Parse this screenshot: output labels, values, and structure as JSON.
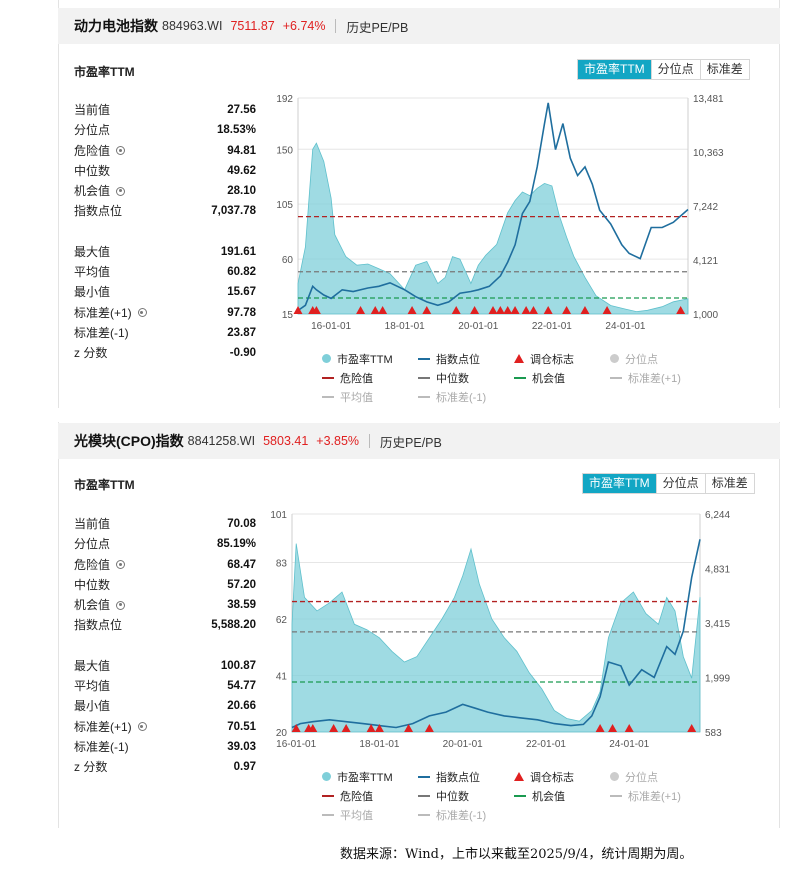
{
  "panels": [
    {
      "header": {
        "name": "动力电池指数",
        "code": "884963.WI",
        "price": "7511.87",
        "change": "+6.74%",
        "history": "历史PE/PB"
      },
      "subtitle": "市盈率TTM",
      "tabs": [
        "市盈率TTM",
        "分位点",
        "标准差"
      ],
      "stats_top": [
        {
          "label": "当前值",
          "value": "27.56",
          "gear": false
        },
        {
          "label": "分位点",
          "value": "18.53%",
          "gear": false
        },
        {
          "label": "危险值",
          "value": "94.81",
          "gear": true
        },
        {
          "label": "中位数",
          "value": "49.62",
          "gear": false
        },
        {
          "label": "机会值",
          "value": "28.10",
          "gear": true
        },
        {
          "label": "指数点位",
          "value": "7,037.78",
          "gear": false
        }
      ],
      "stats_bottom": [
        {
          "label": "最大值",
          "value": "191.61",
          "gear": false
        },
        {
          "label": "平均值",
          "value": "60.82",
          "gear": false
        },
        {
          "label": "最小值",
          "value": "15.67",
          "gear": false
        },
        {
          "label": "标准差(+1)",
          "value": "97.78",
          "gear": true
        },
        {
          "label": "标准差(-1)",
          "value": "23.87",
          "gear": false
        },
        {
          "label": "z 分数",
          "value": "-0.90",
          "gear": false
        }
      ]
    },
    {
      "header": {
        "name": "光模块(CPO)指数",
        "code": "8841258.WI",
        "price": "5803.41",
        "change": "+3.85%",
        "history": "历史PE/PB"
      },
      "subtitle": "市盈率TTM",
      "tabs": [
        "市盈率TTM",
        "分位点",
        "标准差"
      ],
      "stats_top": [
        {
          "label": "当前值",
          "value": "70.08",
          "gear": false
        },
        {
          "label": "分位点",
          "value": "85.19%",
          "gear": false
        },
        {
          "label": "危险值",
          "value": "68.47",
          "gear": true
        },
        {
          "label": "中位数",
          "value": "57.20",
          "gear": false
        },
        {
          "label": "机会值",
          "value": "38.59",
          "gear": true
        },
        {
          "label": "指数点位",
          "value": "5,588.20",
          "gear": false
        }
      ],
      "stats_bottom": [
        {
          "label": "最大值",
          "value": "100.87",
          "gear": false
        },
        {
          "label": "平均值",
          "value": "54.77",
          "gear": false
        },
        {
          "label": "最小值",
          "value": "20.66",
          "gear": false
        },
        {
          "label": "标准差(+1)",
          "value": "70.51",
          "gear": true
        },
        {
          "label": "标准差(-1)",
          "value": "39.03",
          "gear": false
        },
        {
          "label": "z 分数",
          "value": "0.97",
          "gear": false
        }
      ]
    }
  ],
  "legend": [
    {
      "label": "市盈率TTM",
      "kind": "dot",
      "color": "#7fcfd9"
    },
    {
      "label": "指数点位",
      "kind": "line",
      "color": "#1f6e9e"
    },
    {
      "label": "调仓标志",
      "kind": "tri",
      "color": "#e02020"
    },
    {
      "label": "分位点",
      "kind": "dot",
      "color": "#cccccc",
      "faded": true
    },
    {
      "label": "危险值",
      "kind": "dash",
      "color": "#b22222"
    },
    {
      "label": "中位数",
      "kind": "dash",
      "color": "#777777"
    },
    {
      "label": "机会值",
      "kind": "dash",
      "color": "#1a9a50"
    },
    {
      "label": "标准差(+1)",
      "kind": "dash",
      "color": "#bbbbbb",
      "faded": true
    },
    {
      "label": "平均值",
      "kind": "dash",
      "color": "#bbbbbb",
      "faded": true
    },
    {
      "label": "标准差(-1)",
      "kind": "dash",
      "color": "#bbbbbb",
      "faded": true
    }
  ],
  "source": "数据来源：Wind，上市以来截至2025/9/4，统计周期为周。",
  "chart_data": [
    {
      "type": "area",
      "title": "",
      "x_ticks": [
        "16-01-01",
        "18-01-01",
        "20-01-01",
        "22-01-01",
        "24-01-01"
      ],
      "x_range": [
        2015.1,
        2025.7
      ],
      "left_axis": {
        "ticks": [
          15,
          60,
          105,
          150,
          192
        ],
        "range": [
          15,
          192
        ]
      },
      "right_axis": {
        "ticks": [
          1000,
          4121,
          7242,
          10363,
          13481
        ],
        "tick_labels": [
          "1,000",
          "4,121",
          "7,242",
          "10,363",
          "13,481"
        ],
        "range": [
          1000,
          13481
        ]
      },
      "reference_lines": {
        "danger": 94.81,
        "median": 49.62,
        "opportunity": 28.1
      },
      "series": [
        {
          "name": "市盈率TTM",
          "axis": "left",
          "color": "#7fcfd9",
          "x": [
            2015.1,
            2015.3,
            2015.5,
            2015.6,
            2015.8,
            2016.0,
            2016.1,
            2016.4,
            2016.7,
            2017.0,
            2017.3,
            2017.6,
            2018.0,
            2018.3,
            2018.6,
            2018.9,
            2019.1,
            2019.3,
            2019.5,
            2019.8,
            2020.0,
            2020.2,
            2020.5,
            2020.8,
            2021.0,
            2021.2,
            2021.4,
            2021.6,
            2021.8,
            2022.0,
            2022.2,
            2022.4,
            2022.6,
            2022.9,
            2023.2,
            2023.6,
            2024.0,
            2024.3,
            2024.6,
            2025.0,
            2025.3,
            2025.7
          ],
          "values": [
            40,
            70,
            150,
            155,
            140,
            110,
            80,
            62,
            55,
            56,
            52,
            48,
            35,
            55,
            58,
            40,
            45,
            62,
            60,
            40,
            55,
            63,
            72,
            98,
            108,
            115,
            112,
            118,
            122,
            120,
            96,
            78,
            62,
            45,
            30,
            22,
            19,
            17,
            18,
            21,
            25,
            27.56
          ]
        },
        {
          "name": "指数点位",
          "axis": "right",
          "color": "#1f6e9e",
          "x": [
            2015.1,
            2015.3,
            2015.5,
            2015.6,
            2015.8,
            2016.0,
            2016.3,
            2016.6,
            2017.0,
            2017.3,
            2017.6,
            2018.0,
            2018.3,
            2018.6,
            2018.9,
            2019.2,
            2019.5,
            2019.8,
            2020.0,
            2020.3,
            2020.6,
            2020.8,
            2021.0,
            2021.2,
            2021.4,
            2021.6,
            2021.8,
            2021.9,
            2022.1,
            2022.3,
            2022.5,
            2022.7,
            2022.9,
            2023.1,
            2023.3,
            2023.6,
            2023.9,
            2024.1,
            2024.4,
            2024.7,
            2025.0,
            2025.3,
            2025.7
          ],
          "values": [
            1200,
            1500,
            2600,
            2400,
            2100,
            1900,
            2400,
            2300,
            2500,
            2600,
            2800,
            2400,
            2000,
            1700,
            1500,
            1700,
            2200,
            2300,
            2400,
            2600,
            3200,
            4000,
            5000,
            6800,
            7500,
            9500,
            12000,
            13200,
            10500,
            12000,
            10000,
            9000,
            9500,
            8500,
            7000,
            6200,
            5000,
            4500,
            4200,
            6000,
            6000,
            6300,
            7037.78
          ]
        }
      ],
      "markers": {
        "name": "调仓标志",
        "x": [
          2015.1,
          2015.5,
          2015.6,
          2016.8,
          2017.2,
          2017.4,
          2018.2,
          2018.6,
          2019.4,
          2019.9,
          2020.4,
          2020.6,
          2020.8,
          2021.0,
          2021.3,
          2021.5,
          2021.9,
          2022.4,
          2022.9,
          2023.5,
          2025.5
        ]
      }
    },
    {
      "type": "area",
      "title": "",
      "x_ticks": [
        "16-01-01",
        "18-01-01",
        "20-01-01",
        "22-01-01",
        "24-01-01"
      ],
      "x_range": [
        2015.9,
        2025.7
      ],
      "left_axis": {
        "ticks": [
          20,
          41,
          62,
          83,
          101
        ],
        "range": [
          20,
          101
        ]
      },
      "right_axis": {
        "ticks": [
          583,
          1999,
          3415,
          4831,
          6244
        ],
        "tick_labels": [
          "583",
          "1,999",
          "3,415",
          "4,831",
          "6,244"
        ],
        "range": [
          583,
          6244
        ]
      },
      "reference_lines": {
        "danger": 68.47,
        "median": 57.2,
        "opportunity": 38.59
      },
      "series": [
        {
          "name": "市盈率TTM",
          "axis": "left",
          "color": "#7fcfd9",
          "x": [
            2015.9,
            2016.0,
            2016.2,
            2016.5,
            2016.8,
            2017.1,
            2017.4,
            2017.7,
            2018.0,
            2018.3,
            2018.6,
            2018.9,
            2019.2,
            2019.5,
            2019.8,
            2020.0,
            2020.2,
            2020.4,
            2020.7,
            2021.0,
            2021.3,
            2021.6,
            2021.9,
            2022.2,
            2022.5,
            2022.8,
            2023.1,
            2023.3,
            2023.5,
            2023.8,
            2024.1,
            2024.4,
            2024.7,
            2024.9,
            2025.1,
            2025.3,
            2025.5,
            2025.7
          ],
          "values": [
            60,
            90,
            70,
            65,
            68,
            72,
            60,
            58,
            55,
            50,
            46,
            48,
            55,
            62,
            70,
            78,
            88,
            75,
            62,
            55,
            50,
            42,
            36,
            28,
            25,
            24,
            28,
            35,
            55,
            68,
            72,
            64,
            60,
            70,
            65,
            48,
            40,
            70.08
          ]
        },
        {
          "name": "指数点位",
          "axis": "right",
          "color": "#1f6e9e",
          "x": [
            2015.9,
            2016.1,
            2016.4,
            2016.8,
            2017.2,
            2017.6,
            2018.0,
            2018.4,
            2018.8,
            2019.2,
            2019.6,
            2020.0,
            2020.3,
            2020.6,
            2021.0,
            2021.4,
            2021.8,
            2022.2,
            2022.6,
            2022.9,
            2023.1,
            2023.3,
            2023.5,
            2023.8,
            2024.0,
            2024.3,
            2024.6,
            2024.9,
            2025.1,
            2025.3,
            2025.5,
            2025.7
          ],
          "values": [
            700,
            800,
            850,
            900,
            850,
            800,
            750,
            700,
            800,
            1000,
            1100,
            1300,
            1200,
            1100,
            1000,
            950,
            900,
            800,
            750,
            780,
            1000,
            1500,
            2400,
            2300,
            1800,
            2200,
            2000,
            2800,
            2600,
            3200,
            4600,
            5588.2
          ]
        }
      ],
      "markers": {
        "name": "调仓标志",
        "x": [
          2016.0,
          2016.3,
          2016.4,
          2016.9,
          2017.2,
          2017.8,
          2018.0,
          2018.7,
          2019.2,
          2023.3,
          2023.6,
          2024.0,
          2025.5
        ]
      }
    }
  ]
}
